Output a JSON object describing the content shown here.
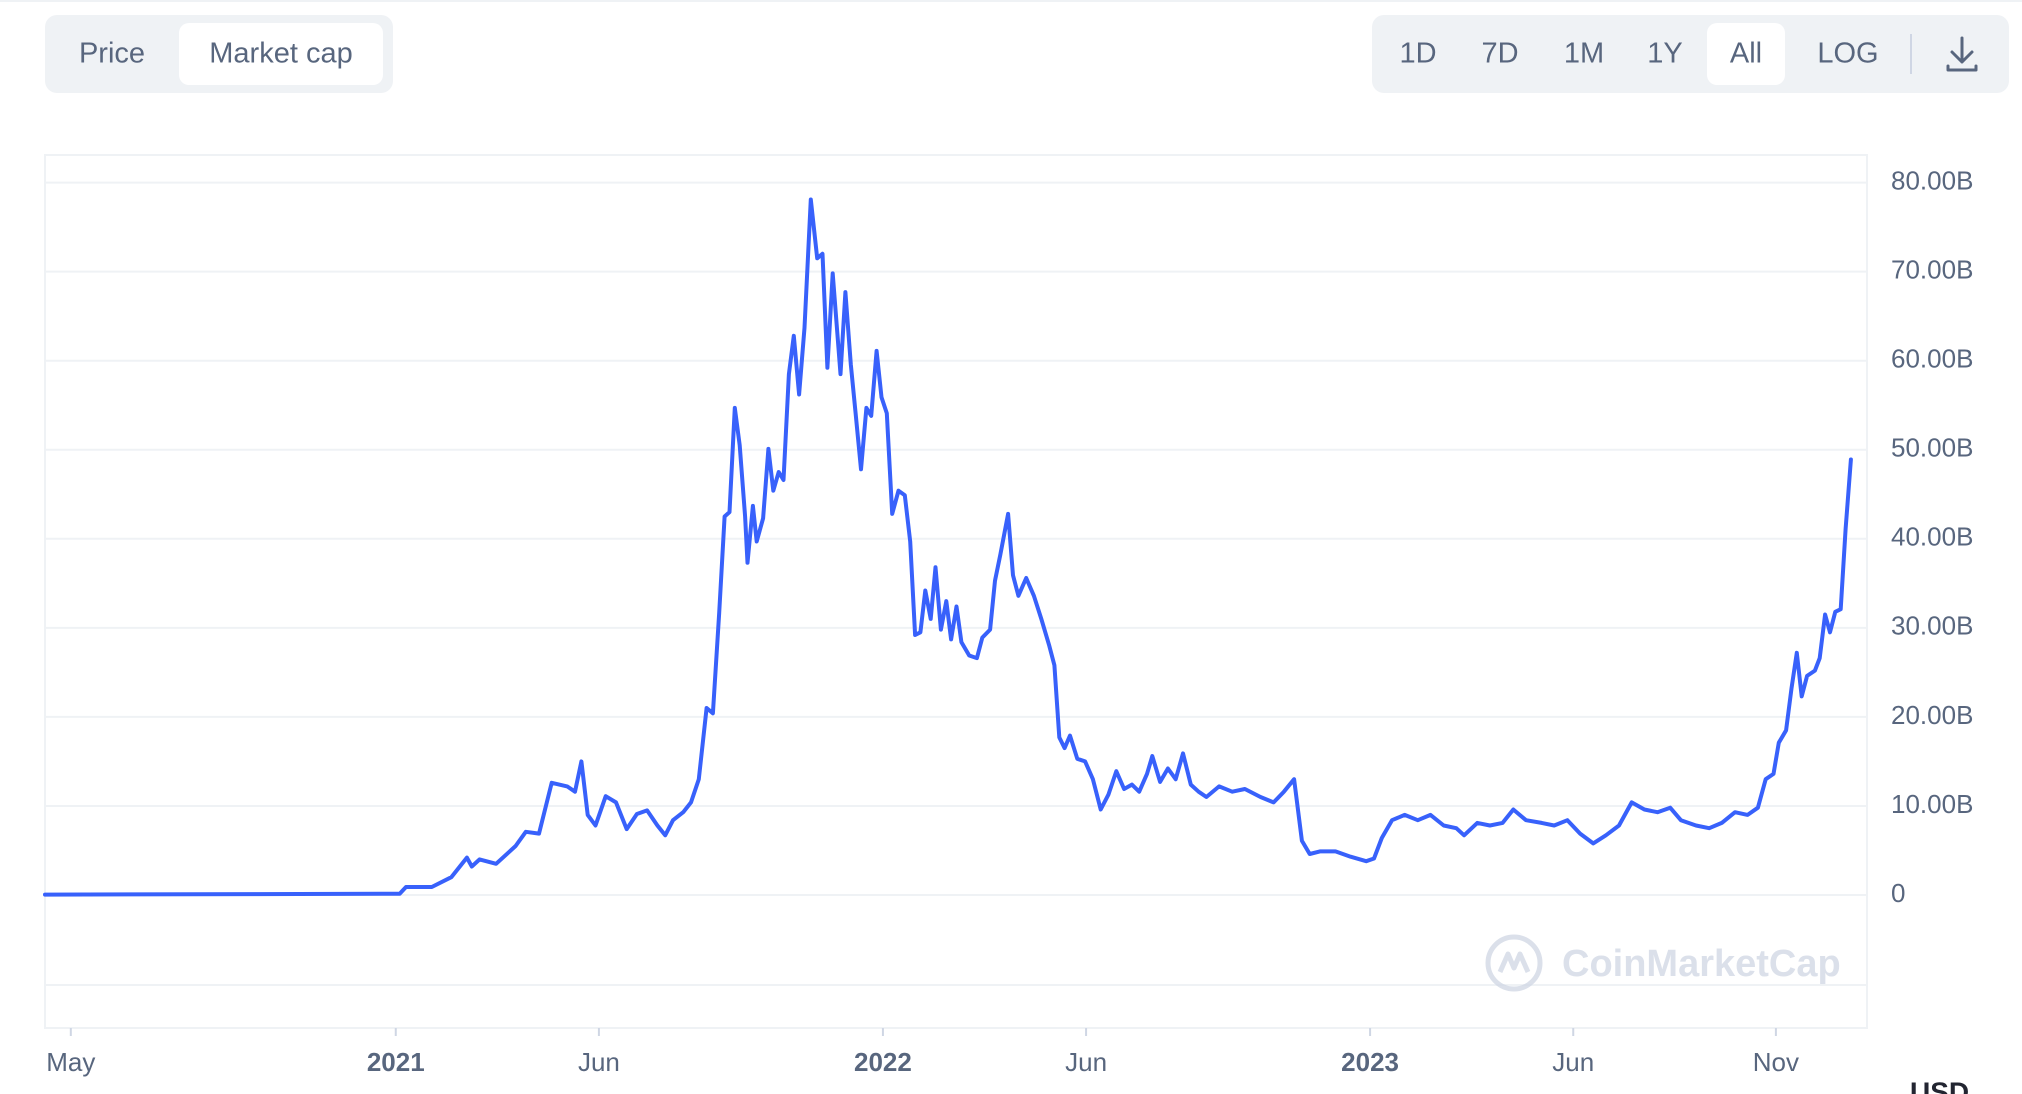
{
  "controls": {
    "tabs": [
      "Price",
      "Market cap"
    ],
    "selected_tab": 1,
    "ranges": [
      "1D",
      "7D",
      "1M",
      "1Y",
      "All",
      "LOG"
    ],
    "selected_range": 4
  },
  "watermark": "CoinMarketCap",
  "currency": "USD",
  "chart_data": {
    "type": "line",
    "color": "#3861fb",
    "grid": true,
    "xlim": [
      2020.28,
      2024.02
    ],
    "xticks": [
      {
        "value": 2020.333,
        "label": "May"
      },
      2021,
      {
        "value": 2021.417,
        "label": "Jun"
      },
      2022,
      {
        "value": 2022.417,
        "label": "Jun"
      },
      2023,
      {
        "value": 2023.417,
        "label": "Jun"
      },
      {
        "value": 2023.833,
        "label": "Nov"
      }
    ],
    "ylim": [
      0,
      83.1
    ],
    "yticks": [
      0,
      {
        "value": 10,
        "label": "10.00B"
      },
      {
        "value": 20,
        "label": "20.00B"
      },
      {
        "value": 30,
        "label": "30.00B"
      },
      {
        "value": 40,
        "label": "40.00B"
      },
      {
        "value": 50,
        "label": "50.00B"
      },
      {
        "value": 60,
        "label": "60.00B"
      },
      {
        "value": 70,
        "label": "70.00B"
      },
      {
        "value": 80,
        "label": "80.00B"
      }
    ],
    "x": [
      2020.28,
      2020.717,
      2021.008,
      2021.021,
      2021.074,
      2021.114,
      2021.146,
      2021.156,
      2021.172,
      2021.206,
      2021.246,
      2021.267,
      2021.294,
      2021.32,
      2021.352,
      2021.368,
      2021.381,
      2021.394,
      2021.41,
      2021.431,
      2021.452,
      2021.474,
      2021.495,
      2021.516,
      2021.537,
      2021.553,
      2021.569,
      2021.59,
      2021.606,
      2021.622,
      2021.638,
      2021.651,
      2021.664,
      2021.675,
      2021.685,
      2021.696,
      2021.706,
      2021.717,
      2021.722,
      2021.733,
      2021.741,
      2021.754,
      2021.765,
      2021.775,
      2021.786,
      2021.796,
      2021.807,
      2021.817,
      2021.828,
      2021.839,
      2021.852,
      2021.865,
      2021.876,
      2021.886,
      2021.897,
      2021.913,
      2021.923,
      2021.934,
      2021.944,
      2021.955,
      2021.966,
      2021.976,
      2021.987,
      2021.997,
      2022.008,
      2022.019,
      2022.032,
      2022.045,
      2022.056,
      2022.066,
      2022.077,
      2022.087,
      2022.098,
      2022.108,
      2022.119,
      2022.13,
      2022.14,
      2022.151,
      2022.161,
      2022.177,
      2022.193,
      2022.204,
      2022.22,
      2022.23,
      2022.241,
      2022.257,
      2022.267,
      2022.278,
      2022.294,
      2022.31,
      2022.325,
      2022.341,
      2022.352,
      2022.362,
      2022.373,
      2022.384,
      2022.399,
      2022.415,
      2022.431,
      2022.447,
      2022.463,
      2022.479,
      2022.495,
      2022.511,
      2022.526,
      2022.542,
      2022.553,
      2022.569,
      2022.585,
      2022.601,
      2022.616,
      2022.632,
      2022.648,
      2022.664,
      2022.69,
      2022.717,
      2022.743,
      2022.775,
      2022.802,
      2022.823,
      2022.844,
      2022.86,
      2022.876,
      2022.897,
      2022.929,
      2022.96,
      2022.992,
      2023.008,
      2023.024,
      2023.045,
      2023.071,
      2023.098,
      2023.124,
      2023.151,
      2023.177,
      2023.193,
      2023.22,
      2023.246,
      2023.272,
      2023.294,
      2023.32,
      2023.352,
      2023.378,
      2023.405,
      2023.431,
      2023.458,
      2023.484,
      2023.511,
      2023.537,
      2023.563,
      2023.59,
      2023.616,
      2023.638,
      2023.669,
      2023.696,
      2023.722,
      2023.749,
      2023.775,
      2023.796,
      2023.812,
      2023.828,
      2023.839,
      2023.854,
      2023.865,
      2023.876,
      2023.886,
      2023.897,
      2023.913,
      2023.923,
      2023.934,
      2023.944,
      2023.955,
      2023.966,
      2023.976,
      2023.987
    ],
    "values": [
      0.05,
      0.1,
      0.15,
      0.9,
      0.9,
      2.0,
      4.2,
      3.2,
      4.0,
      3.5,
      5.5,
      7.1,
      6.9,
      12.6,
      12.2,
      11.6,
      15,
      9,
      7.8,
      11.1,
      10.4,
      7.4,
      9.1,
      9.5,
      7.8,
      6.7,
      8.4,
      9.3,
      10.4,
      13,
      21,
      20.4,
      31.7,
      42.5,
      43,
      54.7,
      50.5,
      42.5,
      37.3,
      43.7,
      39.7,
      42.3,
      50.1,
      45.4,
      47.5,
      46.6,
      58.5,
      62.8,
      56.2,
      63.7,
      78.1,
      71.5,
      72,
      59.2,
      69.8,
      58.5,
      67.7,
      59.6,
      54.1,
      47.8,
      54.7,
      53.8,
      61.1,
      55.9,
      54.1,
      42.8,
      45.4,
      44.9,
      39.7,
      29.2,
      29.5,
      34.2,
      31,
      36.8,
      29.8,
      33,
      28.7,
      32.4,
      28.4,
      26.9,
      26.6,
      28.9,
      29.8,
      35.3,
      38.2,
      42.8,
      35.9,
      33.6,
      35.6,
      33.6,
      31,
      28.1,
      25.8,
      17.7,
      16.5,
      17.9,
      15.3,
      15,
      13,
      9.6,
      11.3,
      13.9,
      11.9,
      12.4,
      11.6,
      13.6,
      15.6,
      12.7,
      14.2,
      13,
      15.9,
      12.4,
      11.6,
      11,
      12.2,
      11.6,
      11.9,
      11,
      10.4,
      11.6,
      13,
      6.1,
      4.6,
      4.9,
      4.9,
      4.3,
      3.8,
      4.1,
      6.4,
      8.4,
      9,
      8.4,
      9,
      7.8,
      7.5,
      6.7,
      8.1,
      7.8,
      8.1,
      9.6,
      8.4,
      8.1,
      7.8,
      8.4,
      6.9,
      5.8,
      6.7,
      7.8,
      10.4,
      9.6,
      9.3,
      9.8,
      8.4,
      7.8,
      7.5,
      8.1,
      9.3,
      9,
      9.8,
      13,
      13.6,
      17.1,
      18.5,
      23.2,
      27.2,
      22.3,
      24.6,
      25.2,
      26.6,
      31.5,
      29.5,
      31.8,
      32.1,
      41.1,
      48.9
    ]
  }
}
